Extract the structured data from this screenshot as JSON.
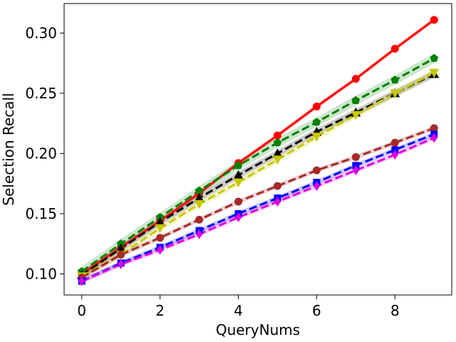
{
  "chart_data": {
    "type": "line",
    "title": "",
    "xlabel": "QueryNums",
    "ylabel": "Selection Recall",
    "xlim": [
      -0.45,
      9.45
    ],
    "ylim": [
      0.0825,
      0.3245
    ],
    "xticks": [
      0,
      2,
      4,
      6,
      8
    ],
    "xtick_labels": [
      "0",
      "2",
      "4",
      "6",
      "8"
    ],
    "yticks": [
      0.1,
      0.15,
      0.2,
      0.25,
      0.3
    ],
    "ytick_labels": [
      "0.10",
      "0.15",
      "0.20",
      "0.25",
      "0.30"
    ],
    "grid": false,
    "legend": "none",
    "x": [
      0,
      1,
      2,
      3,
      4,
      5,
      6,
      7,
      8,
      9
    ],
    "series": [
      {
        "color": "#ff0000",
        "linestyle": "solid",
        "marker": "circle",
        "values": [
          0.1,
          0.122,
          0.144,
          0.167,
          0.192,
          0.215,
          0.239,
          0.262,
          0.287,
          0.311
        ],
        "band": 0.002
      },
      {
        "color": "#008000",
        "linestyle": "dashed",
        "marker": "pentagon",
        "values": [
          0.102,
          0.125,
          0.147,
          0.169,
          0.19,
          0.209,
          0.226,
          0.244,
          0.261,
          0.279
        ],
        "band": 0.004
      },
      {
        "color": "#000000",
        "linestyle": "dashed",
        "marker": "triangle-up",
        "values": [
          0.099,
          0.121,
          0.143,
          0.163,
          0.182,
          0.2,
          0.218,
          0.234,
          0.25,
          0.266
        ],
        "band": 0.003
      },
      {
        "color": "#c8c800",
        "linestyle": "dashed",
        "marker": "triangle-down",
        "values": [
          0.098,
          0.116,
          0.138,
          0.158,
          0.176,
          0.195,
          0.214,
          0.232,
          0.25,
          0.267
        ],
        "band": 0.003
      },
      {
        "color": "#a52a2a",
        "linestyle": "dashed",
        "marker": "circle",
        "values": [
          0.097,
          0.116,
          0.13,
          0.145,
          0.16,
          0.173,
          0.186,
          0.197,
          0.209,
          0.221
        ],
        "band": 0.002
      },
      {
        "color": "#0000ff",
        "linestyle": "dashed",
        "marker": "square",
        "values": [
          0.094,
          0.109,
          0.122,
          0.136,
          0.15,
          0.163,
          0.176,
          0.19,
          0.203,
          0.216
        ],
        "band": 0.002
      },
      {
        "color": "#dd00dd",
        "linestyle": "dashed",
        "marker": "diamond",
        "values": [
          0.094,
          0.108,
          0.12,
          0.133,
          0.147,
          0.16,
          0.173,
          0.186,
          0.199,
          0.213
        ],
        "band": 0.002
      }
    ]
  }
}
